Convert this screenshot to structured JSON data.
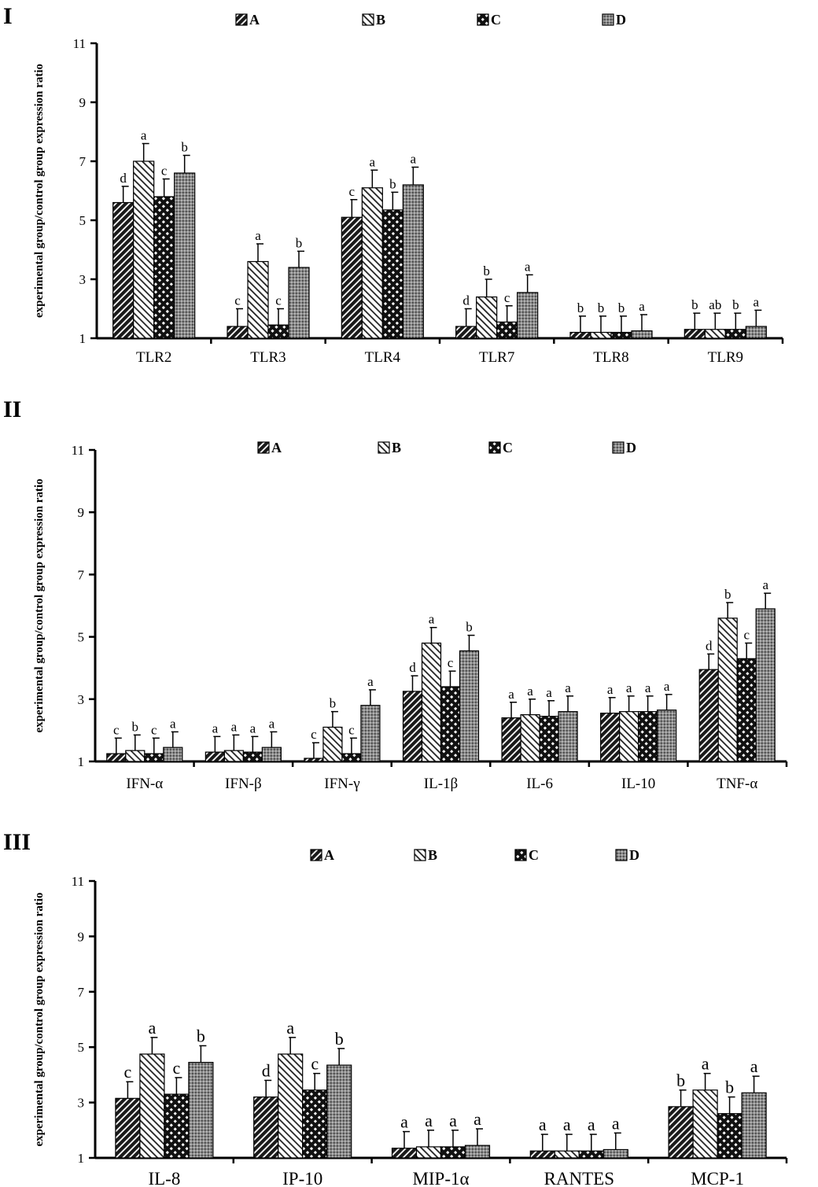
{
  "figure": {
    "y_axis_label": "experimental group/control group expression ratio",
    "legend": [
      "A",
      "B",
      "C",
      "D"
    ],
    "colors": {
      "A": "#1a1a1a",
      "B": "#ffffff",
      "C": "#111111",
      "D": "#7a7a7a",
      "axis": "#000000"
    }
  },
  "chart_data": [
    {
      "type": "bar",
      "panel": "I",
      "title": "",
      "xlabel": "",
      "ylabel": "experimental group/control group expression ratio",
      "ylim": [
        1,
        11
      ],
      "yticks": [
        "1",
        "3",
        "5",
        "7",
        "9",
        "11"
      ],
      "legend_position": "top",
      "categories": [
        "TLR2",
        "TLR3",
        "TLR4",
        "TLR7",
        "TLR8",
        "TLR9"
      ],
      "series": [
        {
          "name": "A",
          "values": [
            5.6,
            1.4,
            5.1,
            1.4,
            1.2,
            1.3
          ],
          "errors": [
            0.55,
            0.6,
            0.6,
            0.6,
            0.55,
            0.55
          ],
          "labels": [
            "d",
            "c",
            "c",
            "d",
            "b",
            "b"
          ]
        },
        {
          "name": "B",
          "values": [
            7.0,
            3.6,
            6.1,
            2.4,
            1.2,
            1.3
          ],
          "errors": [
            0.6,
            0.6,
            0.6,
            0.6,
            0.55,
            0.55
          ],
          "labels": [
            "a",
            "a",
            "a",
            "b",
            "b",
            "ab"
          ]
        },
        {
          "name": "C",
          "values": [
            5.8,
            1.45,
            5.35,
            1.55,
            1.2,
            1.3
          ],
          "errors": [
            0.6,
            0.55,
            0.6,
            0.55,
            0.55,
            0.55
          ],
          "labels": [
            "c",
            "c",
            "b",
            "c",
            "b",
            "b"
          ]
        },
        {
          "name": "D",
          "values": [
            6.6,
            3.4,
            6.2,
            2.55,
            1.25,
            1.4
          ],
          "errors": [
            0.6,
            0.55,
            0.6,
            0.6,
            0.55,
            0.55
          ],
          "labels": [
            "b",
            "b",
            "a",
            "a",
            "a",
            "a"
          ]
        }
      ]
    },
    {
      "type": "bar",
      "panel": "II",
      "title": "",
      "xlabel": "",
      "ylabel": "experimental group/control group expression ratio",
      "ylim": [
        1,
        11
      ],
      "yticks": [
        "1",
        "3",
        "5",
        "7",
        "9",
        "11"
      ],
      "legend_position": "top",
      "categories": [
        "IFN-α",
        "IFN-β",
        "IFN-γ",
        "IL-1β",
        "IL-6",
        "IL-10",
        "TNF-α"
      ],
      "series": [
        {
          "name": "A",
          "values": [
            1.25,
            1.3,
            1.1,
            3.25,
            2.4,
            2.55,
            3.95
          ],
          "errors": [
            0.5,
            0.5,
            0.5,
            0.5,
            0.5,
            0.5,
            0.5
          ],
          "labels": [
            "c",
            "a",
            "c",
            "d",
            "a",
            "a",
            "d"
          ]
        },
        {
          "name": "B",
          "values": [
            1.35,
            1.35,
            2.1,
            4.8,
            2.5,
            2.6,
            5.6
          ],
          "errors": [
            0.5,
            0.5,
            0.5,
            0.5,
            0.5,
            0.5,
            0.5
          ],
          "labels": [
            "b",
            "a",
            "b",
            "a",
            "a",
            "a",
            "b"
          ]
        },
        {
          "name": "C",
          "values": [
            1.25,
            1.3,
            1.25,
            3.4,
            2.45,
            2.6,
            4.3
          ],
          "errors": [
            0.5,
            0.5,
            0.5,
            0.5,
            0.5,
            0.5,
            0.5
          ],
          "labels": [
            "c",
            "a",
            "c",
            "c",
            "a",
            "a",
            "c"
          ]
        },
        {
          "name": "D",
          "values": [
            1.45,
            1.45,
            2.8,
            4.55,
            2.6,
            2.65,
            5.9
          ],
          "errors": [
            0.5,
            0.5,
            0.5,
            0.5,
            0.5,
            0.5,
            0.5
          ],
          "labels": [
            "a",
            "a",
            "a",
            "b",
            "a",
            "a",
            "a"
          ]
        }
      ]
    },
    {
      "type": "bar",
      "panel": "III",
      "title": "",
      "xlabel": "",
      "ylabel": "experimental group/control group expression ratio",
      "ylim": [
        1,
        11
      ],
      "yticks": [
        "1",
        "3",
        "5",
        "7",
        "9",
        "11"
      ],
      "legend_position": "top",
      "categories": [
        "IL-8",
        "IP-10",
        "MIP-1α",
        "RANTES",
        "MCP-1"
      ],
      "series": [
        {
          "name": "A",
          "values": [
            3.15,
            3.2,
            1.35,
            1.25,
            2.85
          ],
          "errors": [
            0.6,
            0.6,
            0.6,
            0.6,
            0.6
          ],
          "labels": [
            "c",
            "d",
            "a",
            "a",
            "b"
          ]
        },
        {
          "name": "B",
          "values": [
            4.75,
            4.75,
            1.4,
            1.25,
            3.45
          ],
          "errors": [
            0.6,
            0.6,
            0.6,
            0.6,
            0.6
          ],
          "labels": [
            "a",
            "a",
            "a",
            "a",
            "a"
          ]
        },
        {
          "name": "C",
          "values": [
            3.3,
            3.45,
            1.4,
            1.25,
            2.6
          ],
          "errors": [
            0.6,
            0.6,
            0.6,
            0.6,
            0.6
          ],
          "labels": [
            "c",
            "c",
            "a",
            "a",
            "b"
          ]
        },
        {
          "name": "D",
          "values": [
            4.45,
            4.35,
            1.45,
            1.3,
            3.35
          ],
          "errors": [
            0.6,
            0.6,
            0.6,
            0.6,
            0.6
          ],
          "labels": [
            "b",
            "b",
            "a",
            "a",
            "a"
          ]
        }
      ]
    }
  ]
}
